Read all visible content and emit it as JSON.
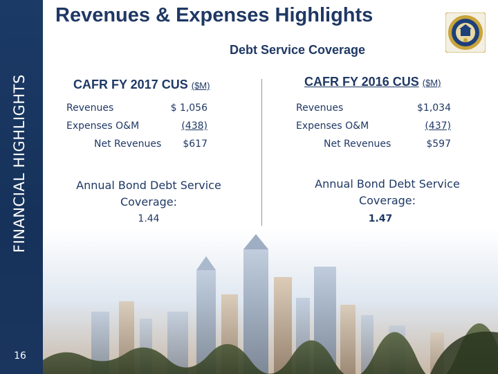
{
  "side_title": "FINANCIAL HIGHLIGHTS",
  "page_number": "16",
  "title": "Revenues & Expenses Highlights",
  "subtitle": "Debt Service Coverage",
  "columns": [
    {
      "heading_main": "CAFR FY 2017 CUS",
      "heading_unit": "($M)",
      "rows": [
        {
          "label": "Revenues",
          "value": "$ 1,056"
        },
        {
          "label": "Expenses O&M",
          "value": "(438)"
        },
        {
          "label": "Net Revenues",
          "value": "$617"
        }
      ],
      "coverage_label_line1": "Annual Bond Debt Service",
      "coverage_label_line2": "Coverage:",
      "coverage_value": "1.44"
    },
    {
      "heading_main": "CAFR FY 2016 CUS",
      "heading_unit": "($M)",
      "rows": [
        {
          "label": "Revenues",
          "value": "$1,034"
        },
        {
          "label": "Expenses O&M",
          "value": "(437)"
        },
        {
          "label": "Net Revenues",
          "value": "$597"
        }
      ],
      "coverage_label_line1": "Annual Bond Debt Service",
      "coverage_label_line2": "Coverage:",
      "coverage_value": "1.47"
    }
  ],
  "colors": {
    "navy": "#1f3864",
    "band": "#1b3a66",
    "seal_gold": "#c9a43a",
    "seal_blue": "#1d3f7a"
  },
  "icons": {
    "seal": "city-seal-icon",
    "skyline": "city-skyline-image"
  }
}
